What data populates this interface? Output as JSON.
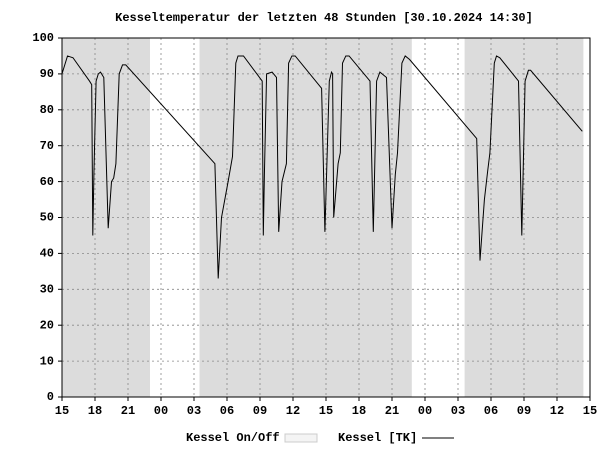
{
  "chart_data": {
    "type": "line",
    "title": "Kesseltemperatur der letzten 48 Stunden [30.10.2024 14:30]",
    "xlim": [
      0,
      48
    ],
    "ylim": [
      0,
      100
    ],
    "xticks": [
      {
        "value": 0,
        "label": "15"
      },
      {
        "value": 3,
        "label": "18"
      },
      {
        "value": 6,
        "label": "21"
      },
      {
        "value": 9,
        "label": "00"
      },
      {
        "value": 12,
        "label": "03"
      },
      {
        "value": 15,
        "label": "06"
      },
      {
        "value": 18,
        "label": "09"
      },
      {
        "value": 21,
        "label": "12"
      },
      {
        "value": 24,
        "label": "15"
      },
      {
        "value": 27,
        "label": "18"
      },
      {
        "value": 30,
        "label": "21"
      },
      {
        "value": 33,
        "label": "00"
      },
      {
        "value": 36,
        "label": "03"
      },
      {
        "value": 39,
        "label": "06"
      },
      {
        "value": 42,
        "label": "09"
      },
      {
        "value": 45,
        "label": "12"
      },
      {
        "value": 48,
        "label": "15"
      }
    ],
    "yticks": [
      0,
      10,
      20,
      30,
      40,
      50,
      60,
      70,
      80,
      90,
      100
    ],
    "grid": true,
    "series": [
      {
        "name": "Kessel On/Off",
        "color": "#dcdcdc",
        "periods": [
          [
            0,
            8
          ],
          [
            12.5,
            31.8
          ],
          [
            36.6,
            47.4
          ]
        ]
      },
      {
        "name": "Kessel [TK]",
        "color": "#000000",
        "x": [
          0,
          0.5,
          1.0,
          2.5,
          2.7,
          2.8,
          2.9,
          3.1,
          3.3,
          3.5,
          3.8,
          4.2,
          4.5,
          4.7,
          4.9,
          5.2,
          5.5,
          5.8,
          13.9,
          14.2,
          14.5,
          15.1,
          15.5,
          15.8,
          16.0,
          16.5,
          18.2,
          18.3,
          18.4,
          18.6,
          19.1,
          19.5,
          19.7,
          20.0,
          20.4,
          20.6,
          20.9,
          21.2,
          23.6,
          23.9,
          24.3,
          24.5,
          24.6,
          24.7,
          25.1,
          25.3,
          25.5,
          25.8,
          26.1,
          28.0,
          28.3,
          28.6,
          28.9,
          29.5,
          30.0,
          30.3,
          30.5,
          30.9,
          31.2,
          31.6,
          37.7,
          38.0,
          38.4,
          38.7,
          38.9,
          39.3,
          39.5,
          39.8,
          41.5,
          41.8,
          42.1,
          42.4,
          42.6,
          47.3
        ],
        "values": [
          90,
          95,
          94.5,
          88,
          87,
          45,
          62,
          88,
          90,
          90.5,
          89,
          47,
          60,
          61,
          65,
          90,
          92.5,
          92.5,
          65,
          33,
          50,
          60,
          67,
          93,
          95,
          95,
          88,
          45,
          62,
          90,
          90.5,
          89,
          46,
          60,
          65,
          93,
          95,
          95,
          86,
          46,
          88,
          90.5,
          90,
          50,
          65,
          68,
          93,
          95,
          95,
          88,
          46,
          88,
          90.5,
          89,
          47,
          62,
          68,
          93,
          95,
          94,
          72,
          38,
          55,
          63,
          68,
          93,
          95,
          94.5,
          88,
          45,
          88,
          91,
          91,
          74
        ]
      }
    ]
  }
}
